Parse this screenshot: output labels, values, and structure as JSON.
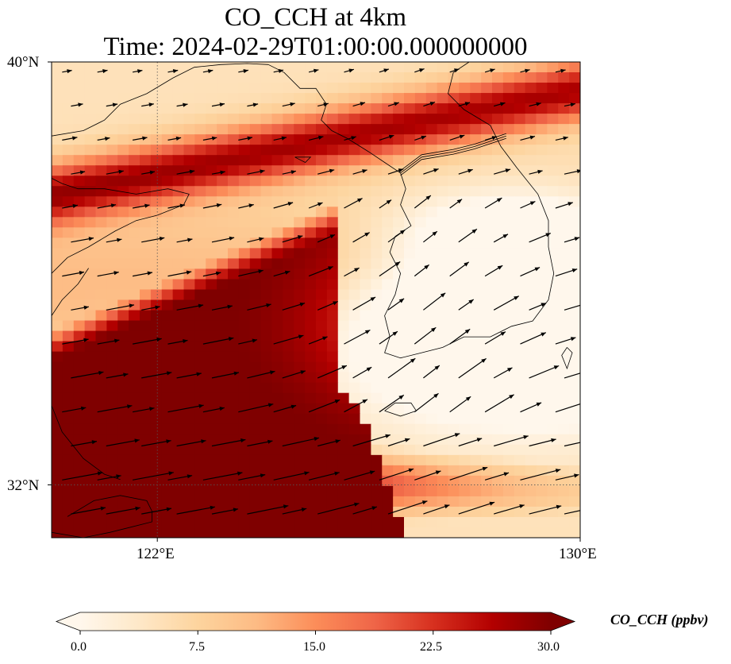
{
  "title": {
    "line1": "CO_CCH at 4km",
    "line2": "Time: 2024-02-29T01:00:00.000000000"
  },
  "axes": {
    "lat_ticks": [
      "40°N",
      "32°N"
    ],
    "lon_ticks": [
      "122°E",
      "130°E"
    ],
    "lat_range": [
      31,
      40
    ],
    "lon_range": [
      120,
      130
    ],
    "gridlines": "dotted at 32°N and 122°E"
  },
  "colorbar": {
    "label": "CO_CCH (ppbv)",
    "ticks": [
      "0.0",
      "7.5",
      "15.0",
      "22.5",
      "30.0"
    ],
    "min": 0,
    "max": 30,
    "extend": "both",
    "colormap": "OrRd",
    "colors": [
      "#fff7ec",
      "#fee8c8",
      "#fdd49e",
      "#fdbb84",
      "#fc8d59",
      "#ef6548",
      "#d7301f",
      "#b30000",
      "#7f0000"
    ]
  },
  "chart_data": {
    "type": "heatmap",
    "variable": "CO_CCH",
    "units": "ppbv",
    "level": "4km",
    "overlay": "wind vectors (arrows), coastlines",
    "features": [
      {
        "name": "northern high band",
        "description": "narrow dark-red band running WSW-ENE from about 37.5°N 120°E to 39.5°N 130°E",
        "value_approx": 28
      },
      {
        "name": "southern plume",
        "description": "broad maximum over the southwest, about 31-34.5°N, 120-126°E, extending NE to about 36°N 128°E",
        "value_approx": 30
      },
      {
        "name": "low region",
        "description": "low values over the Korean peninsula area, about 33-36°N, 126.5-130°E",
        "value_approx": 2
      }
    ],
    "wind": "westerly to west-southwesterly flow, stronger in the south"
  }
}
